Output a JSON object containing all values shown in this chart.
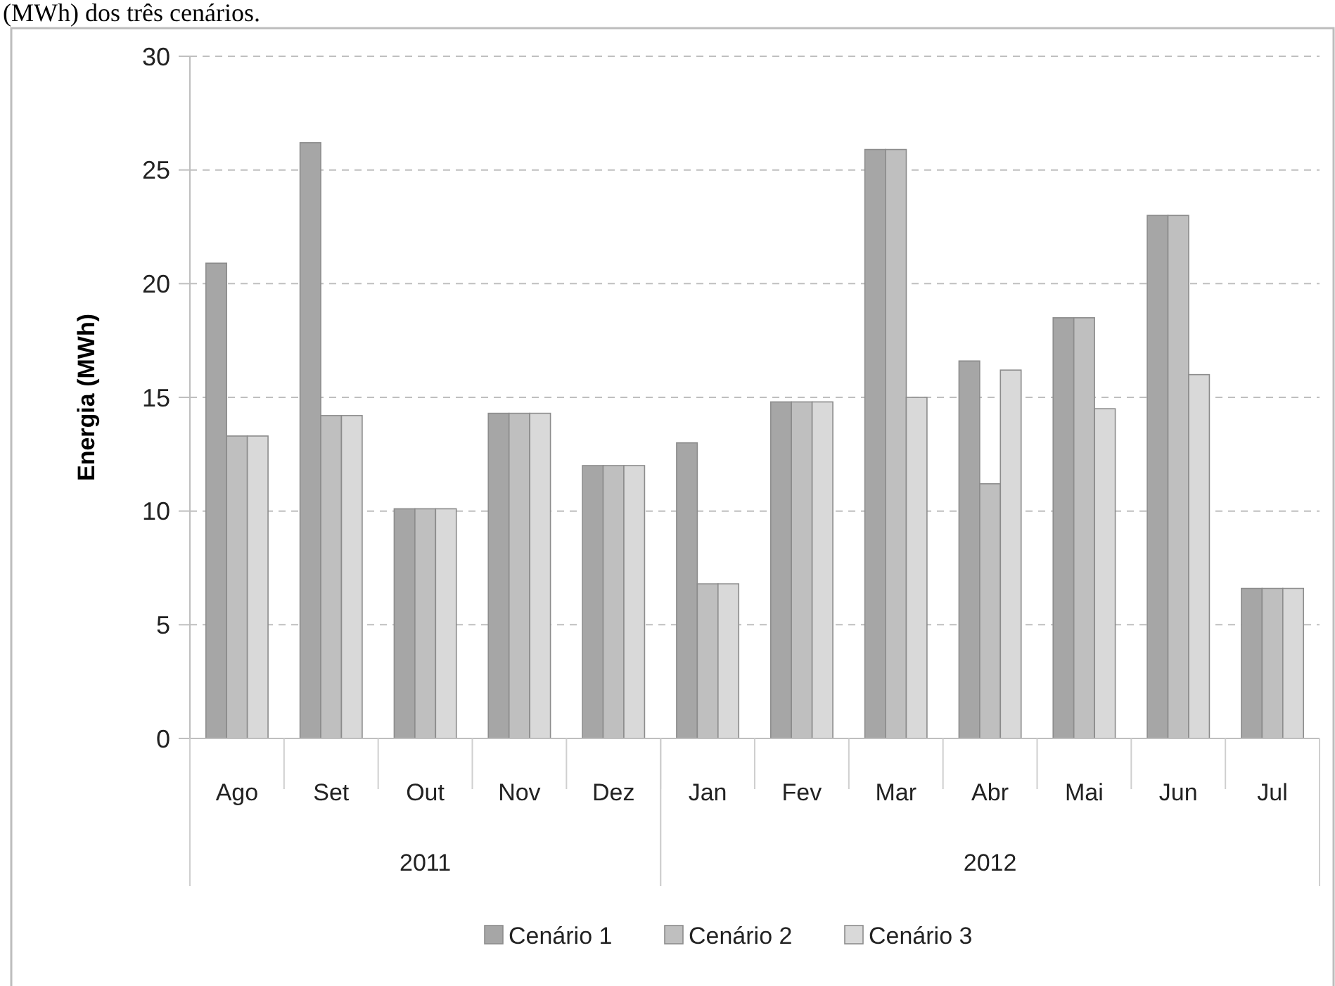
{
  "chart_data": {
    "type": "bar",
    "ylabel": "Energia (MWh)",
    "categories": [
      "Ago",
      "Set",
      "Out",
      "Nov",
      "Dez",
      "Jan",
      "Fev",
      "Mar",
      "Abr",
      "Mai",
      "Jun",
      "Jul"
    ],
    "series": [
      {
        "name": "Cenário 1",
        "color": "#a6a6a6",
        "values": [
          20.9,
          26.2,
          10.1,
          14.3,
          12.0,
          13.0,
          14.8,
          25.9,
          16.6,
          18.5,
          23.0,
          6.6
        ]
      },
      {
        "name": "Cenário 2",
        "color": "#bfbfbf",
        "values": [
          13.3,
          14.2,
          10.1,
          14.3,
          12.0,
          6.8,
          14.8,
          25.9,
          11.2,
          18.5,
          23.0,
          6.6
        ]
      },
      {
        "name": "Cenário 3",
        "color": "#d9d9d9",
        "values": [
          13.3,
          14.2,
          10.1,
          14.3,
          12.0,
          6.8,
          14.8,
          15.0,
          16.2,
          14.5,
          16.0,
          6.6
        ]
      }
    ],
    "ylim": [
      0,
      30
    ],
    "yticks": [
      0,
      5,
      10,
      15,
      20,
      25,
      30
    ],
    "grid": "y",
    "legend": "bottom",
    "annotations": [
      "(MWh) dos três cenários.",
      "2011",
      "2012"
    ]
  }
}
